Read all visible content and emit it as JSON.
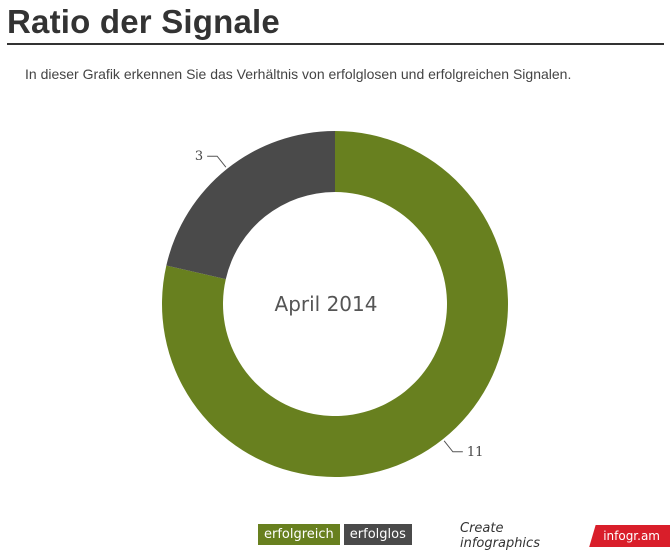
{
  "header": {
    "title": "Ratio der Signale",
    "subtitle": "In dieser Grafik erkennen Sie das Verhältnis von erfolglosen und erfolgreichen Signalen."
  },
  "chart_data": {
    "type": "pie",
    "variant": "donut",
    "center_label": "April 2014",
    "categories": [
      "erfolgreich",
      "erfolglos"
    ],
    "values": [
      11,
      3
    ],
    "colors": [
      "#68801f",
      "#4a4a4a"
    ],
    "legend": "bottom"
  },
  "footer": {
    "brand_text": "Create infographics",
    "brand_logo": "infogr.am"
  }
}
